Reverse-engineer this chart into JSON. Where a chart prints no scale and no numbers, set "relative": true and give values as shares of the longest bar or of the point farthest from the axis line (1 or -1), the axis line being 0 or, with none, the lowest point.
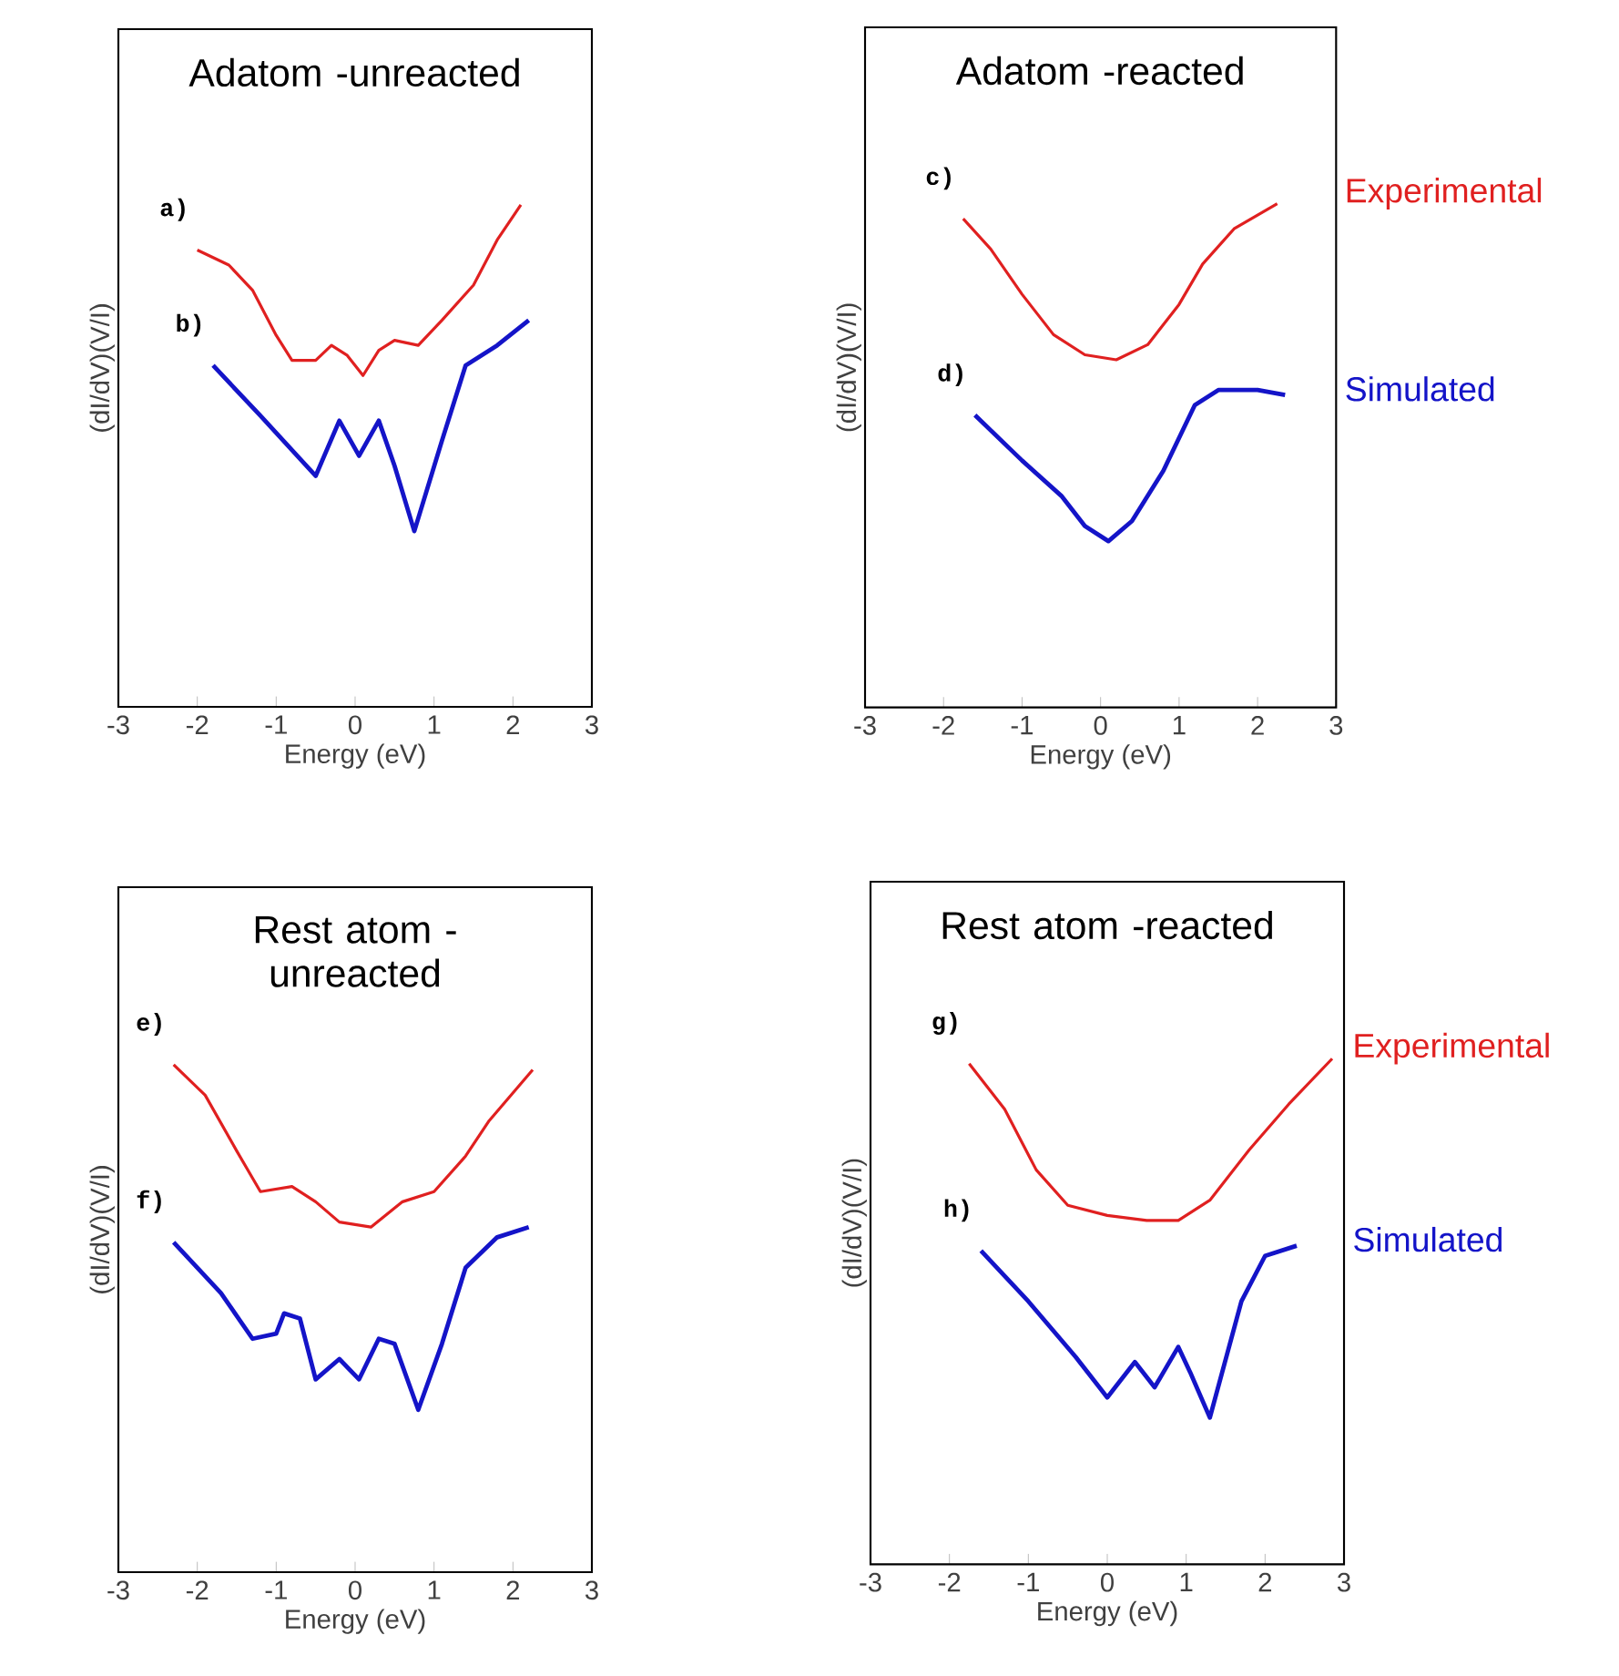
{
  "chart_data": [
    {
      "type": "line",
      "relative": true,
      "title": "Adatom -unreacted",
      "xlabel": "Energy (eV)",
      "ylabel": "(dI/dV)(V/I)",
      "xlim": [
        -3,
        3
      ],
      "xticks": [
        -3,
        -2,
        -1,
        0,
        1,
        2,
        3
      ],
      "tick_labels": "x",
      "annotations": [
        "a)",
        "b)"
      ],
      "series": [
        {
          "color": "#e02020",
          "x": [
            -2,
            -1.6,
            -1.3,
            -1,
            -0.8,
            -0.5,
            -0.3,
            -0.1,
            0.1,
            0.3,
            0.5,
            0.8,
            1.1,
            1.5,
            1.8,
            2.1
          ],
          "values": [
            0.91,
            0.88,
            0.83,
            0.74,
            0.69,
            0.69,
            0.72,
            0.7,
            0.66,
            0.71,
            0.73,
            0.72,
            0.77,
            0.84,
            0.93,
            1.0
          ]
        },
        {
          "color": "#1414c8",
          "x": [
            -1.8,
            -1.2,
            -0.5,
            -0.2,
            0.05,
            0.3,
            0.5,
            0.75,
            1.1,
            1.4,
            1.8,
            2.2
          ],
          "values": [
            0.68,
            0.58,
            0.46,
            0.57,
            0.5,
            0.57,
            0.48,
            0.35,
            0.53,
            0.68,
            0.72,
            0.77
          ]
        }
      ]
    },
    {
      "type": "line",
      "relative": true,
      "title": "Adatom -reacted",
      "xlabel": "Energy (eV)",
      "ylabel": "(dI/dV)(V/I)",
      "xlim": [
        -3,
        3
      ],
      "xticks": [
        -3,
        -2,
        -1,
        0,
        1,
        2,
        3
      ],
      "tick_labels": "x",
      "annotations": [
        "c)",
        "d)"
      ],
      "series": [
        {
          "name": "Experimental",
          "color": "#e02020",
          "x": [
            -1.75,
            -1.4,
            -1,
            -0.6,
            -0.2,
            0.2,
            0.6,
            1.0,
            1.3,
            1.7,
            2.25
          ],
          "values": [
            0.97,
            0.91,
            0.82,
            0.74,
            0.7,
            0.69,
            0.72,
            0.8,
            0.88,
            0.95,
            1.0
          ]
        },
        {
          "name": "Simulated",
          "color": "#1414c8",
          "x": [
            -1.6,
            -1,
            -0.5,
            -0.2,
            0.1,
            0.4,
            0.8,
            1.2,
            1.5,
            2.0,
            2.35
          ],
          "values": [
            0.58,
            0.49,
            0.42,
            0.36,
            0.33,
            0.37,
            0.47,
            0.6,
            0.63,
            0.63,
            0.62
          ]
        }
      ]
    },
    {
      "type": "line",
      "relative": true,
      "title": "Rest atom -unreacted",
      "xlabel": "Energy (eV)",
      "ylabel": "(dI/dV)(V/I)",
      "xlim": [
        -3,
        3
      ],
      "xticks": [
        -3,
        -2,
        -1,
        0,
        1,
        2,
        3
      ],
      "tick_labels": "x",
      "annotations": [
        "e)",
        "f)"
      ],
      "series": [
        {
          "color": "#e02020",
          "x": [
            -2.3,
            -1.9,
            -1.5,
            -1.2,
            -0.8,
            -0.5,
            -0.2,
            0.2,
            0.6,
            1.0,
            1.4,
            1.7,
            2.25
          ],
          "values": [
            1.0,
            0.94,
            0.83,
            0.75,
            0.76,
            0.73,
            0.69,
            0.68,
            0.73,
            0.75,
            0.82,
            0.89,
            0.99
          ]
        },
        {
          "color": "#1414c8",
          "x": [
            -2.3,
            -1.7,
            -1.3,
            -1.0,
            -0.9,
            -0.7,
            -0.5,
            -0.2,
            0.05,
            0.3,
            0.5,
            0.8,
            1.1,
            1.4,
            1.8,
            2.2
          ],
          "values": [
            0.65,
            0.55,
            0.46,
            0.47,
            0.51,
            0.5,
            0.38,
            0.42,
            0.38,
            0.46,
            0.45,
            0.32,
            0.45,
            0.6,
            0.66,
            0.68
          ]
        }
      ]
    },
    {
      "type": "line",
      "relative": true,
      "title": "Rest atom -reacted",
      "xlabel": "Energy (eV)",
      "ylabel": "(dI/dV)(V/I)",
      "xlim": [
        -3,
        3
      ],
      "xticks": [
        -3,
        -2,
        -1,
        0,
        1,
        2,
        3
      ],
      "tick_labels": "x",
      "annotations": [
        "g)",
        "h)"
      ],
      "series": [
        {
          "name": "Experimental",
          "color": "#e02020",
          "x": [
            -1.75,
            -1.3,
            -0.9,
            -0.5,
            0,
            0.5,
            0.9,
            1.3,
            1.8,
            2.3,
            2.85
          ],
          "values": [
            0.99,
            0.9,
            0.78,
            0.71,
            0.69,
            0.68,
            0.68,
            0.72,
            0.82,
            0.91,
            1.0
          ]
        },
        {
          "name": "Simulated",
          "color": "#1414c8",
          "x": [
            -1.6,
            -1.0,
            -0.4,
            0,
            0.35,
            0.6,
            0.9,
            1.05,
            1.3,
            1.7,
            2.0,
            2.4
          ],
          "values": [
            0.62,
            0.52,
            0.41,
            0.33,
            0.4,
            0.35,
            0.43,
            0.38,
            0.29,
            0.52,
            0.61,
            0.63
          ]
        }
      ]
    }
  ]
}
